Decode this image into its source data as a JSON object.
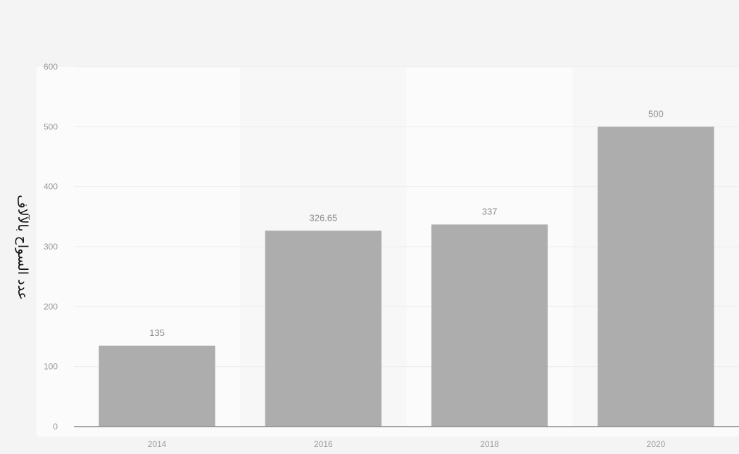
{
  "chart_data": {
    "type": "bar",
    "categories": [
      "2014",
      "2016",
      "2018",
      "2020"
    ],
    "values": [
      135,
      326.65,
      337,
      500
    ],
    "value_labels": [
      "135",
      "326.65",
      "337",
      "500"
    ],
    "ylabel": "عدد السواح بالآلاف",
    "xlabel": "",
    "ylim": [
      0,
      600
    ],
    "yticks": [
      0,
      100,
      200,
      300,
      400,
      500,
      600
    ],
    "grid": true,
    "colors": {
      "bar": "#adadad",
      "panel": "#fbfbfb",
      "band": "#f7f7f7",
      "axis": "#8a8a8a",
      "grid": "#ececec"
    }
  }
}
